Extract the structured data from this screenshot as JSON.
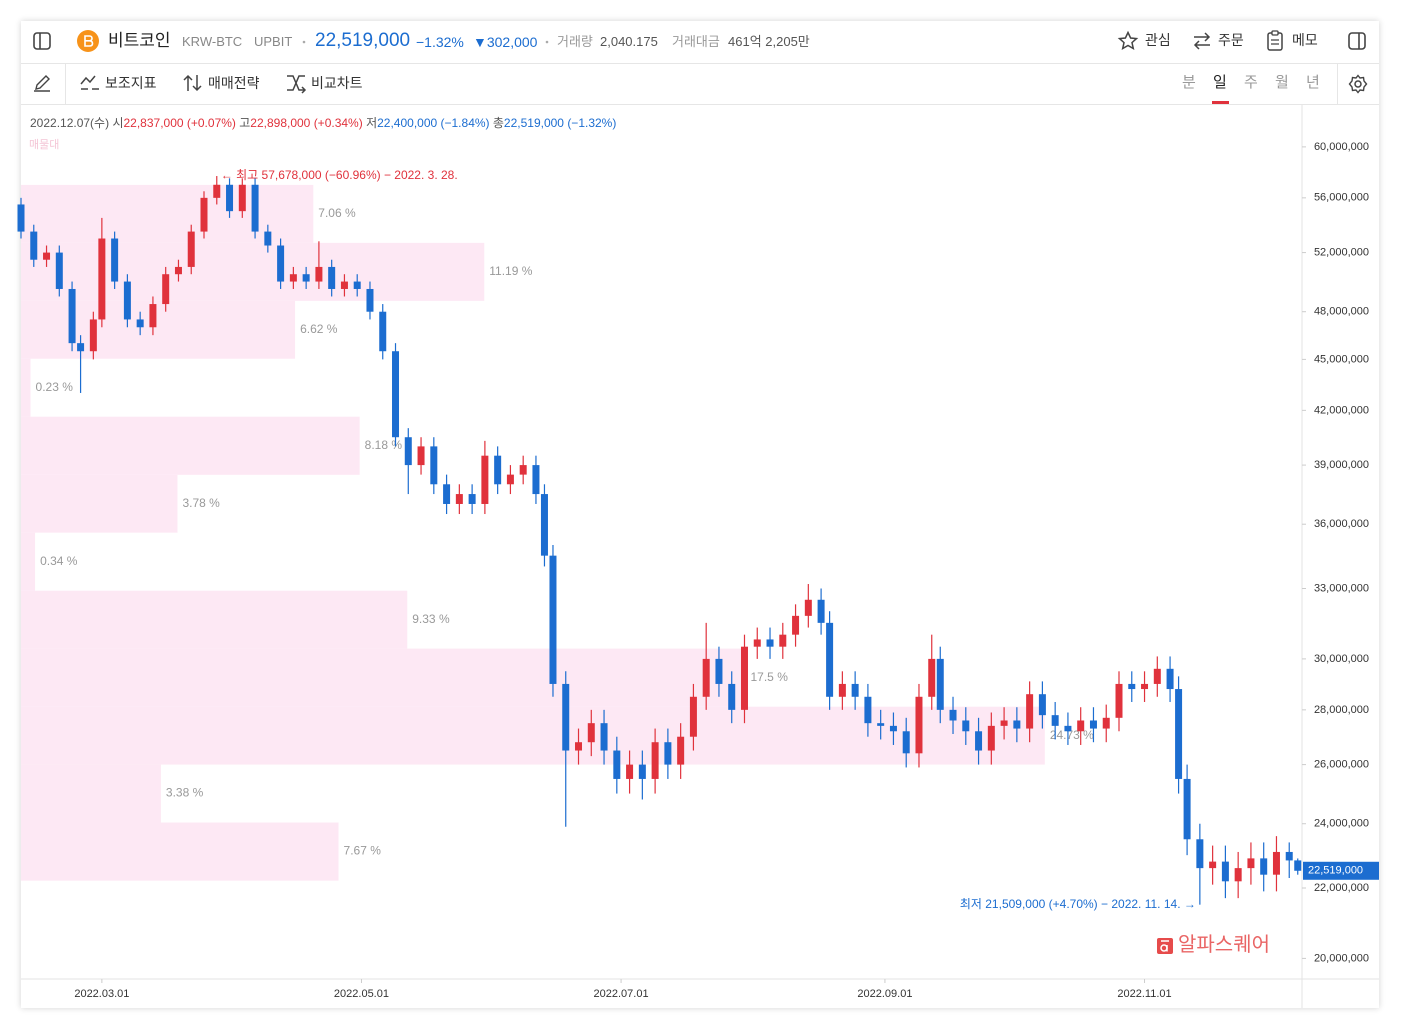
{
  "header": {
    "name": "비트코인",
    "ticker": "KRW-BTC",
    "exchange": "UPBIT",
    "price": "22,519,000",
    "change_pct": "−1.32%",
    "change": "▼302,000",
    "volume_label": "거래량",
    "volume": "2,040.175",
    "amount_label": "거래대금",
    "amount": "461억 2,205만",
    "buttons": [
      "관심",
      "주문",
      "메모"
    ]
  },
  "toolbar": {
    "tools": [
      "보조지표",
      "매매전략",
      "비교차트"
    ],
    "timeframes": [
      "분",
      "일",
      "주",
      "월",
      "년"
    ],
    "selected_timeframe": 1
  },
  "legend_line": {
    "date": "2022.12.07(수)",
    "open_label": "시",
    "open": "22,837,000 (+0.07%)",
    "high_label": "고",
    "high": "22,898,000 (+0.34%)",
    "low_label": "저",
    "low": "22,400,000 (−1.84%)",
    "close_label": "총",
    "close": "22,519,000 (−1.32%)"
  },
  "watermark": "알파스퀘어",
  "chart_data": {
    "type": "candlestick",
    "log_scale": true,
    "grid": false,
    "up_color": "#e0323c",
    "down_color": "#1c6dd0",
    "xlim": [
      "2022.02.10",
      "2022.12.08"
    ],
    "xticks": [
      "2022.03.01",
      "2022.05.01",
      "2022.07.01",
      "2022.09.01",
      "2022.11.01"
    ],
    "ylim": [
      19450000,
      63500000
    ],
    "yticks": [
      {
        "value": 20000000,
        "label": "20,000,000"
      },
      {
        "value": 22000000,
        "label": "22,000,000"
      },
      {
        "value": 24000000,
        "label": "24,000,000"
      },
      {
        "value": 26000000,
        "label": "26,000,000"
      },
      {
        "value": 28000000,
        "label": "28,000,000"
      },
      {
        "value": 30000000,
        "label": "30,000,000"
      },
      {
        "value": 33000000,
        "label": "33,000,000"
      },
      {
        "value": 36000000,
        "label": "36,000,000"
      },
      {
        "value": 39000000,
        "label": "39,000,000"
      },
      {
        "value": 42000000,
        "label": "42,000,000"
      },
      {
        "value": 45000000,
        "label": "45,000,000"
      },
      {
        "value": 48000000,
        "label": "48,000,000"
      },
      {
        "value": 52000000,
        "label": "52,000,000"
      },
      {
        "value": 56000000,
        "label": "56,000,000"
      },
      {
        "value": 60000000,
        "label": "60,000,000"
      }
    ],
    "x": [
      "2022.02.10",
      "2022.02.13",
      "2022.02.16",
      "2022.02.19",
      "2022.02.22",
      "2022.02.24",
      "2022.02.27",
      "2022.03.01",
      "2022.03.04",
      "2022.03.07",
      "2022.03.10",
      "2022.03.13",
      "2022.03.16",
      "2022.03.19",
      "2022.03.22",
      "2022.03.25",
      "2022.03.28",
      "2022.03.31",
      "2022.04.03",
      "2022.04.06",
      "2022.04.09",
      "2022.04.12",
      "2022.04.15",
      "2022.04.18",
      "2022.04.21",
      "2022.04.24",
      "2022.04.27",
      "2022.04.30",
      "2022.05.03",
      "2022.05.06",
      "2022.05.09",
      "2022.05.12",
      "2022.05.15",
      "2022.05.18",
      "2022.05.21",
      "2022.05.24",
      "2022.05.27",
      "2022.05.30",
      "2022.06.02",
      "2022.06.05",
      "2022.06.08",
      "2022.06.11",
      "2022.06.13",
      "2022.06.15",
      "2022.06.18",
      "2022.06.21",
      "2022.06.24",
      "2022.06.27",
      "2022.06.30",
      "2022.07.03",
      "2022.07.06",
      "2022.07.09",
      "2022.07.12",
      "2022.07.15",
      "2022.07.18",
      "2022.07.21",
      "2022.07.24",
      "2022.07.27",
      "2022.07.30",
      "2022.08.02",
      "2022.08.05",
      "2022.08.08",
      "2022.08.11",
      "2022.08.14",
      "2022.08.17",
      "2022.08.19",
      "2022.08.22",
      "2022.08.25",
      "2022.08.28",
      "2022.08.31",
      "2022.09.03",
      "2022.09.06",
      "2022.09.09",
      "2022.09.12",
      "2022.09.14",
      "2022.09.17",
      "2022.09.20",
      "2022.09.23",
      "2022.09.26",
      "2022.09.29",
      "2022.10.02",
      "2022.10.05",
      "2022.10.08",
      "2022.10.11",
      "2022.10.14",
      "2022.10.17",
      "2022.10.20",
      "2022.10.23",
      "2022.10.26",
      "2022.10.29",
      "2022.11.01",
      "2022.11.04",
      "2022.11.07",
      "2022.11.09",
      "2022.11.11",
      "2022.11.14",
      "2022.11.17",
      "2022.11.20",
      "2022.11.23",
      "2022.11.26",
      "2022.11.29",
      "2022.12.02",
      "2022.12.05",
      "2022.12.07"
    ],
    "open": [
      55500000,
      53500000,
      51500000,
      52000000,
      49500000,
      46000000,
      45500000,
      47500000,
      53000000,
      50000000,
      47500000,
      47000000,
      48500000,
      50500000,
      51000000,
      53500000,
      56000000,
      57000000,
      55000000,
      57000000,
      53500000,
      52500000,
      50000000,
      50500000,
      50000000,
      51000000,
      49500000,
      50000000,
      49500000,
      48000000,
      45500000,
      40500000,
      39000000,
      40000000,
      38000000,
      37000000,
      37500000,
      37000000,
      39500000,
      38000000,
      38500000,
      39000000,
      37500000,
      34500000,
      29000000,
      26500000,
      26800000,
      27500000,
      26500000,
      25500000,
      26000000,
      25500000,
      26800000,
      26000000,
      27000000,
      28500000,
      30000000,
      29000000,
      28000000,
      30500000,
      30800000,
      30500000,
      31000000,
      31800000,
      32500000,
      31500000,
      28500000,
      29000000,
      28500000,
      27500000,
      27400000,
      27200000,
      26400000,
      28500000,
      30000000,
      28000000,
      27600000,
      27200000,
      26500000,
      27400000,
      27600000,
      27300000,
      28600000,
      27800000,
      27400000,
      27200000,
      27600000,
      27300000,
      27700000,
      29000000,
      28800000,
      29000000,
      29600000,
      28800000,
      25500000,
      23500000,
      22600000,
      22800000,
      22200000,
      22600000,
      22900000,
      22400000,
      23100000,
      22837000
    ],
    "high": [
      56000000,
      54000000,
      52500000,
      52500000,
      50000000,
      46500000,
      48000000,
      54500000,
      53500000,
      50500000,
      48000000,
      49000000,
      51000000,
      51500000,
      54000000,
      56500000,
      57678000,
      57500000,
      57500000,
      57500000,
      54000000,
      53000000,
      51000000,
      51000000,
      52800000,
      51500000,
      50500000,
      50500000,
      50000000,
      48500000,
      46000000,
      41000000,
      40500000,
      40500000,
      38500000,
      38000000,
      38000000,
      40300000,
      40000000,
      39000000,
      39500000,
      39500000,
      38000000,
      35000000,
      29500000,
      27300000,
      28000000,
      28000000,
      27000000,
      26500000,
      26500000,
      27300000,
      27300000,
      27500000,
      29000000,
      31500000,
      30500000,
      29500000,
      31000000,
      31300000,
      31300000,
      31500000,
      32300000,
      33200000,
      33000000,
      32000000,
      29500000,
      29500000,
      29000000,
      28000000,
      27900000,
      27700000,
      29000000,
      31000000,
      30500000,
      28500000,
      28100000,
      27700000,
      27900000,
      28100000,
      28100000,
      29100000,
      29100000,
      28300000,
      27900000,
      28100000,
      28100000,
      28200000,
      29500000,
      29500000,
      29500000,
      30100000,
      30100000,
      29300000,
      26000000,
      24000000,
      23300000,
      23300000,
      23100000,
      23400000,
      23400000,
      23600000,
      23400000,
      22898000
    ],
    "low": [
      53000000,
      51000000,
      51000000,
      49000000,
      45500000,
      43000000,
      45000000,
      47000000,
      49500000,
      47000000,
      46500000,
      46500000,
      48000000,
      50000000,
      50500000,
      53000000,
      55500000,
      54500000,
      54500000,
      53000000,
      52000000,
      49500000,
      49500000,
      49500000,
      49500000,
      49000000,
      49000000,
      49000000,
      47500000,
      45000000,
      40000000,
      37500000,
      38500000,
      37500000,
      36500000,
      36500000,
      36500000,
      36500000,
      37500000,
      37500000,
      38000000,
      37000000,
      34000000,
      28500000,
      23900000,
      26000000,
      26300000,
      26000000,
      25000000,
      25000000,
      24800000,
      25000000,
      25500000,
      25500000,
      26500000,
      28000000,
      28500000,
      27500000,
      27500000,
      30000000,
      30000000,
      30000000,
      30500000,
      31300000,
      31000000,
      28000000,
      28000000,
      28000000,
      27000000,
      26900000,
      26700000,
      25900000,
      25900000,
      28000000,
      27500000,
      27100000,
      26700000,
      26000000,
      26000000,
      26900000,
      26800000,
      26800000,
      27300000,
      26900000,
      26700000,
      26700000,
      26800000,
      26800000,
      27200000,
      28300000,
      28300000,
      28500000,
      28300000,
      25000000,
      23000000,
      21509000,
      22100000,
      21700000,
      21700000,
      22100000,
      21900000,
      21900000,
      22300000,
      22400000
    ],
    "close": [
      53500000,
      51500000,
      52000000,
      49500000,
      46000000,
      45500000,
      47500000,
      53000000,
      50000000,
      47500000,
      47000000,
      48500000,
      50500000,
      51000000,
      53500000,
      56000000,
      57000000,
      55000000,
      57000000,
      53500000,
      52500000,
      50000000,
      50500000,
      50000000,
      51000000,
      49500000,
      50000000,
      49500000,
      48000000,
      45500000,
      40500000,
      39000000,
      40000000,
      38000000,
      37000000,
      37500000,
      37000000,
      39500000,
      38000000,
      38500000,
      39000000,
      37500000,
      34500000,
      29000000,
      26500000,
      26800000,
      27500000,
      26500000,
      25500000,
      26000000,
      25500000,
      26800000,
      26000000,
      27000000,
      28500000,
      30000000,
      29000000,
      28000000,
      30500000,
      30800000,
      30500000,
      31000000,
      31800000,
      32500000,
      31500000,
      28500000,
      29000000,
      28500000,
      27500000,
      27400000,
      27200000,
      26400000,
      28500000,
      30000000,
      28000000,
      27600000,
      27200000,
      26500000,
      27400000,
      27600000,
      27300000,
      28600000,
      27800000,
      27400000,
      27200000,
      27600000,
      27300000,
      27700000,
      29000000,
      28800000,
      29000000,
      29600000,
      28800000,
      25500000,
      23500000,
      22600000,
      22800000,
      22200000,
      22600000,
      22900000,
      22400000,
      23100000,
      22837000,
      22519000
    ],
    "last_price_label": "22,519,000",
    "high_annotation": "← 최고 57,678,000 (−60.96%) − 2022. 3. 28.",
    "low_annotation": "최저 21,509,000 (+4.70%) − 2022. 11. 14. →",
    "volume_profile": {
      "title": "매물대",
      "color": "#fde8f4",
      "bins": [
        22220000,
        24040000,
        26000000,
        28120000,
        30420000,
        32900000,
        35590000,
        38490000,
        41640000,
        45040000,
        48710000,
        52690000,
        56990000
      ],
      "values": [
        7.67,
        3.38,
        24.73,
        17.5,
        9.33,
        0.34,
        3.78,
        8.18,
        0.23,
        6.62,
        11.19,
        7.06
      ],
      "value_labels": [
        "7.67 %",
        "3.38 %",
        "24.73 %",
        "17.5 %",
        "9.33 %",
        "0.34 %",
        "3.78 %",
        "8.18 %",
        "0.23 %",
        "6.62 %",
        "11.19 %",
        "7.06 %"
      ]
    }
  }
}
